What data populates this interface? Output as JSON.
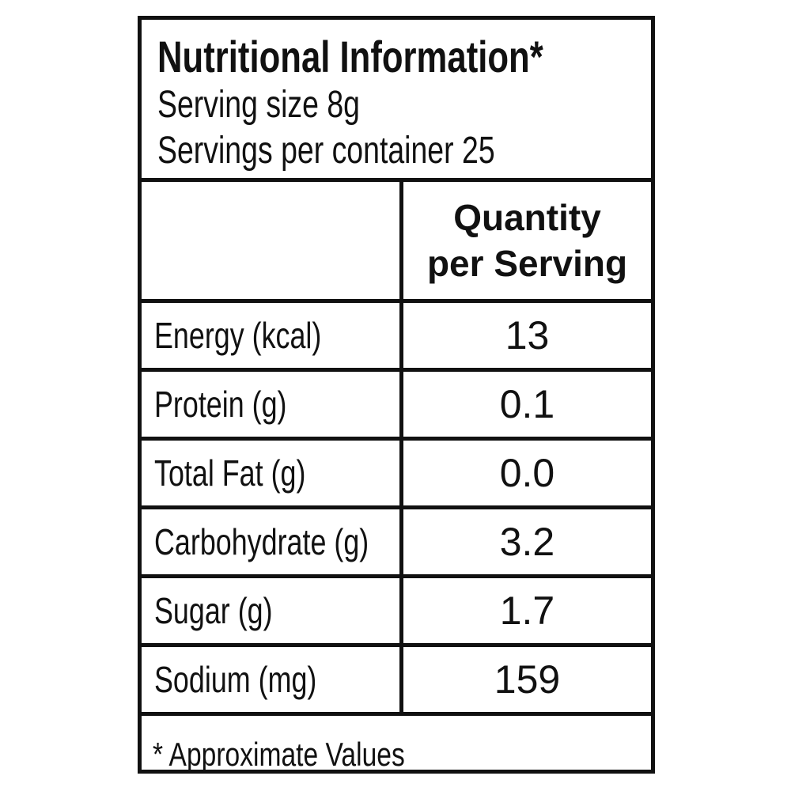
{
  "header": {
    "title": "Nutritional Information*",
    "serving_size": "Serving size 8g",
    "servings_per_container": "Servings per container 25"
  },
  "table": {
    "column_header": "Quantity per Serving",
    "rows": [
      [
        "Energy (kcal)",
        "13"
      ],
      [
        "Protein (g)",
        "0.1"
      ],
      [
        "Total Fat (g)",
        "0.0"
      ],
      [
        "Carbohydrate (g)",
        "3.2"
      ],
      [
        "Sugar (g)",
        "1.7"
      ],
      [
        "Sodium (mg)",
        "159"
      ]
    ]
  },
  "footnote": "* Approximate Values"
}
